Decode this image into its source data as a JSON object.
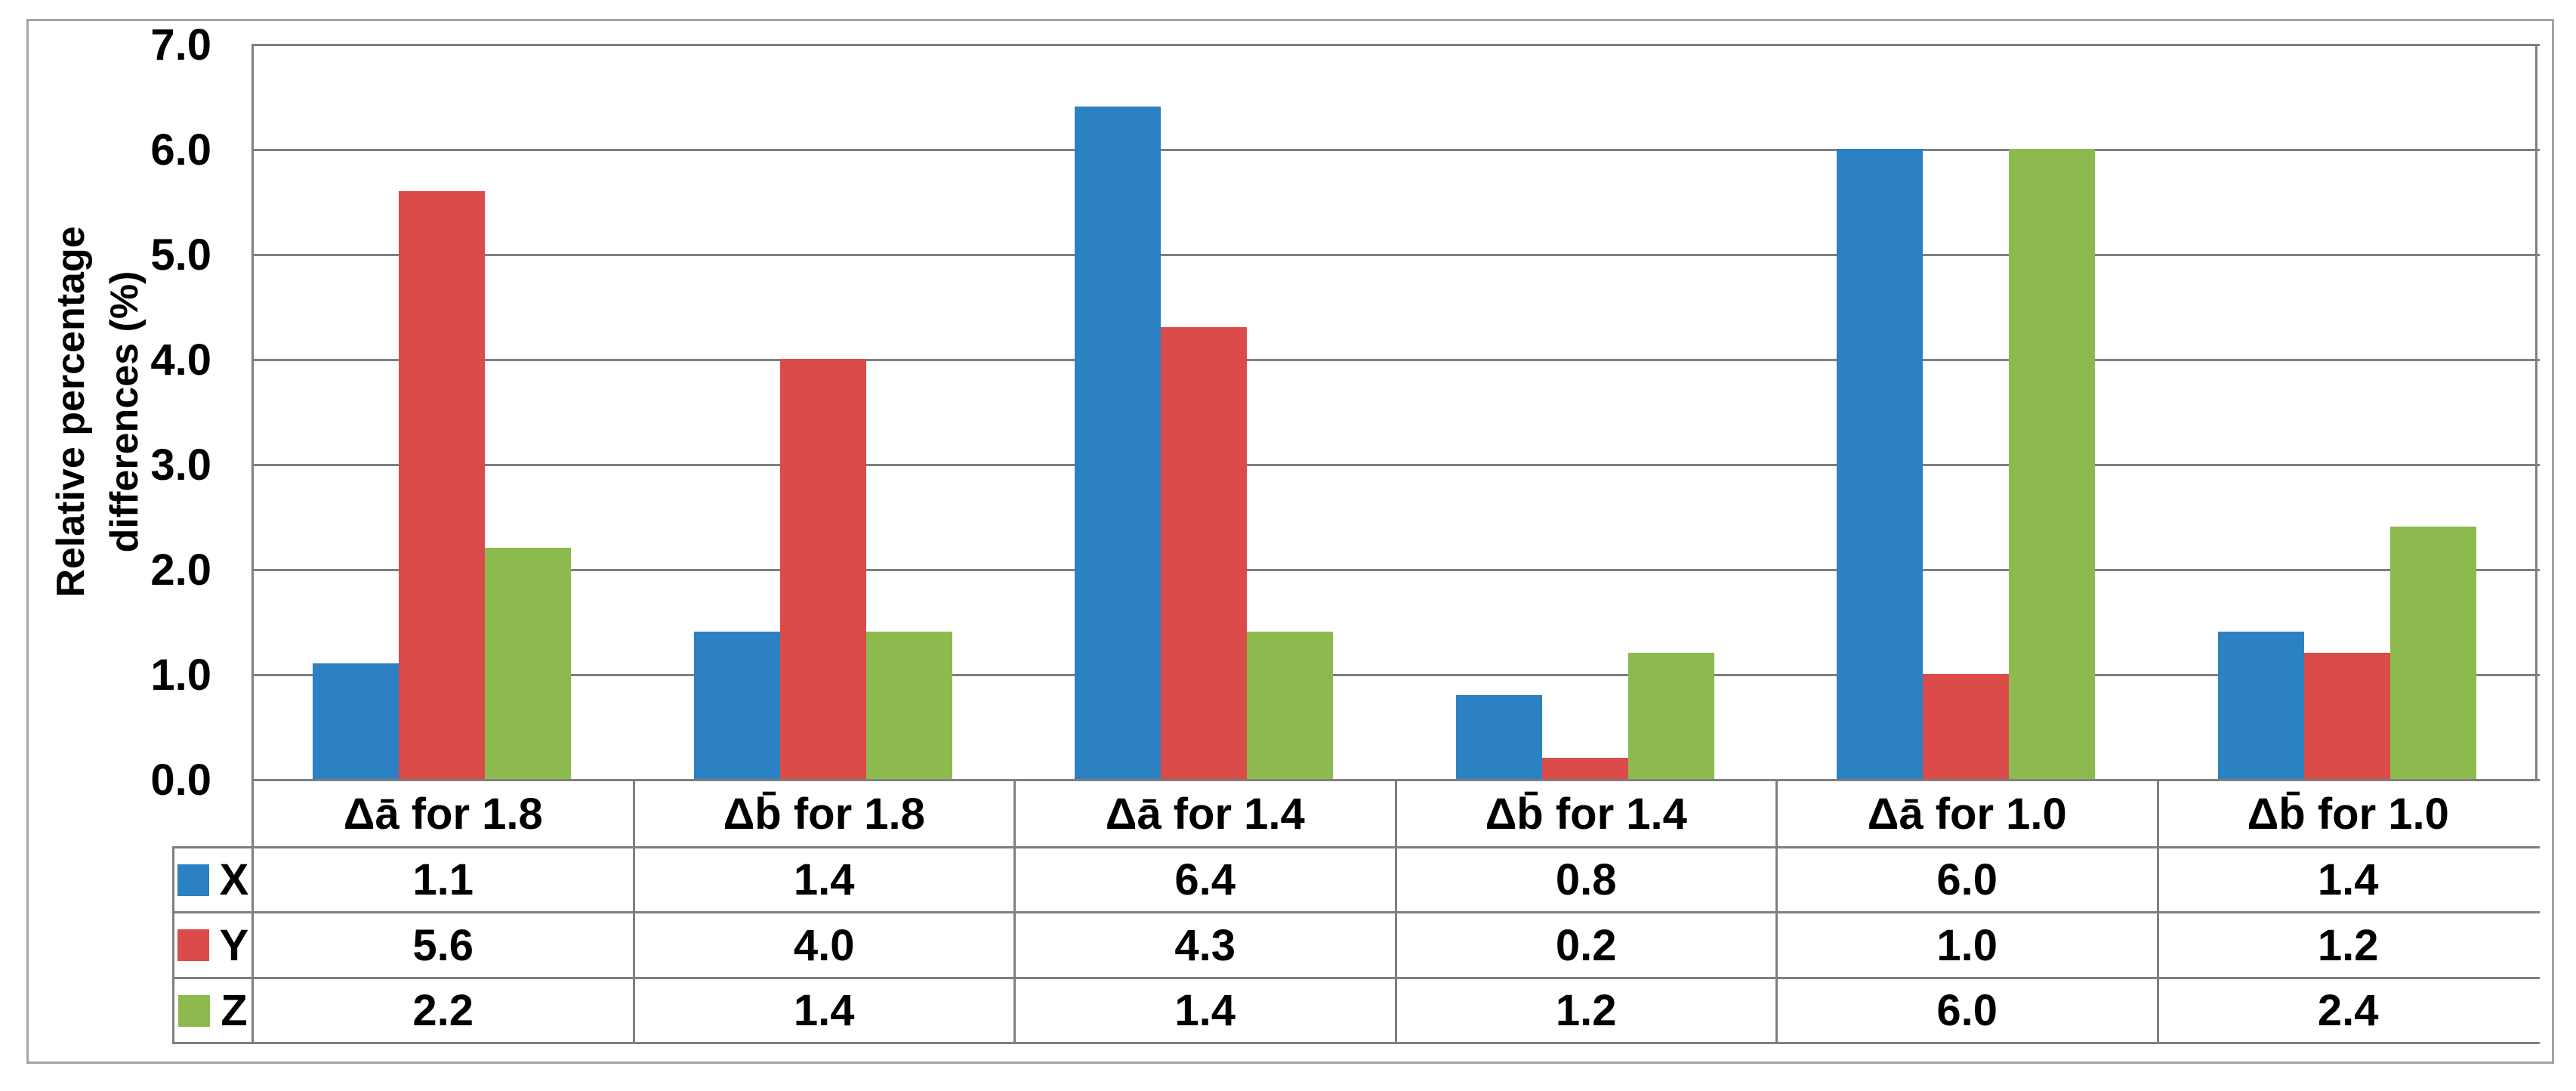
{
  "chart_data": {
    "type": "bar",
    "title": "",
    "ylabel": "Relative percentage differences (%)",
    "ylabel_lines": [
      "Relative percentage",
      "differences (%)"
    ],
    "ylim": [
      0.0,
      7.0
    ],
    "ytick_step": 1.0,
    "ytick_labels": [
      "7.0",
      "6.0",
      "5.0",
      "4.0",
      "3.0",
      "2.0",
      "1.0",
      "0.0"
    ],
    "categories": [
      "Δā for 1.8",
      "Δb̄ for 1.8",
      "Δā for 1.4",
      "Δb̄ for 1.4",
      "Δā for 1.0",
      "Δb̄ for 1.0"
    ],
    "series": [
      {
        "name": "X",
        "color": "#2b81c1",
        "values": [
          1.1,
          1.4,
          6.4,
          0.8,
          6.0,
          1.4
        ]
      },
      {
        "name": "Y",
        "color": "#da4b4a",
        "values": [
          5.6,
          4.0,
          4.3,
          0.2,
          1.0,
          1.2
        ]
      },
      {
        "name": "Z",
        "color": "#8cba4e",
        "values": [
          2.2,
          1.4,
          1.4,
          1.2,
          6.0,
          2.4
        ]
      }
    ],
    "grid": "horizontal",
    "grid_color": "#7f7f7f",
    "frame_color": "#a3a3a3",
    "legend_position": "table-left",
    "value_format": "0.0"
  }
}
